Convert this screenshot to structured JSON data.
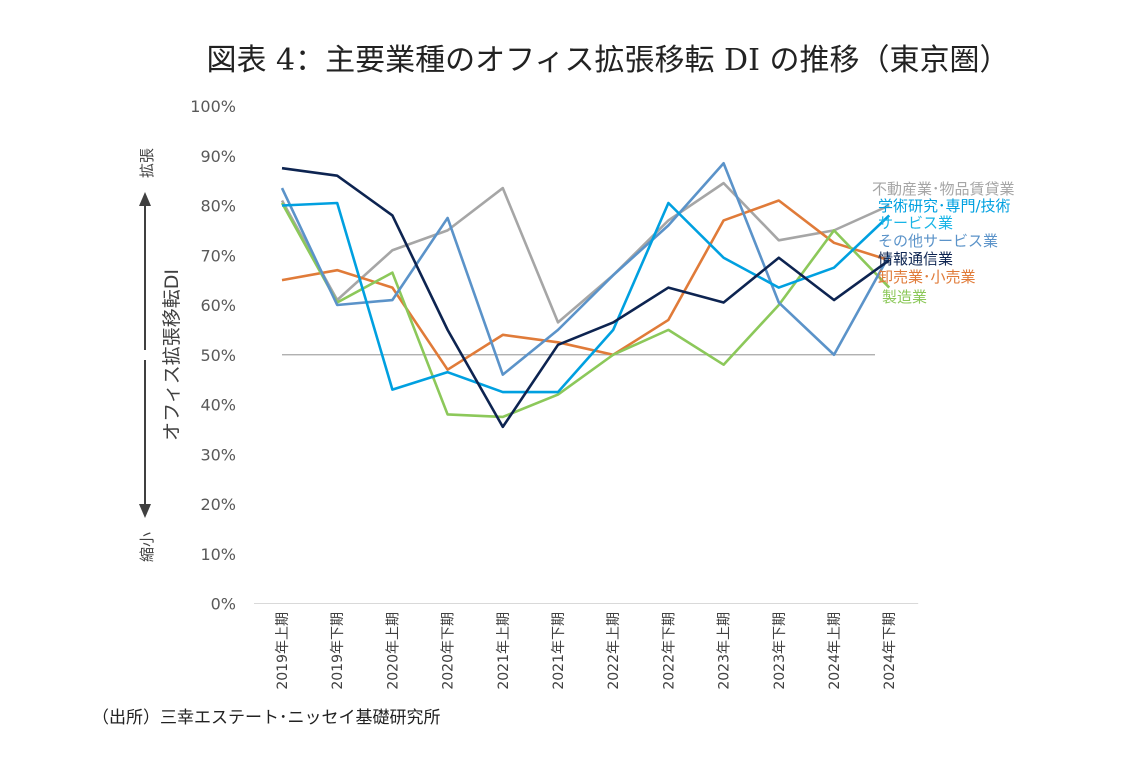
{
  "title": "図表 4：主要業種のオフィス拡張移転 DI の推移（東京圏）",
  "source": "（出所）三幸エステート･ニッセイ基礎研究所",
  "colors": {
    "real_estate": "#a6a6a6",
    "academic": "#00a0e0",
    "services": "#17b4e6",
    "other_services": "#5b93c9",
    "info_comm": "#0d2451",
    "wholesale_retail": "#e07b39",
    "manufacturing": "#8cc85a"
  },
  "chart_data": {
    "type": "line",
    "title": "図表 4：主要業種のオフィス拡張移転 DI の推移（東京圏）",
    "ylabel": "オフィス拡張移転DI",
    "ylabel_top": "拡張",
    "ylabel_bottom": "縮小",
    "ylim": [
      0,
      100
    ],
    "yticks": [
      "0%",
      "10%",
      "20%",
      "30%",
      "40%",
      "50%",
      "60%",
      "70%",
      "80%",
      "90%",
      "100%"
    ],
    "reference_line": 50,
    "categories": [
      "2019年上期",
      "2019年下期",
      "2020年上期",
      "2020年下期",
      "2021年上期",
      "2021年下期",
      "2022年上期",
      "2022年下期",
      "2023年上期",
      "2023年下期",
      "2024年上期",
      "2024年下期"
    ],
    "series": [
      {
        "key": "real_estate",
        "name": "不動産業･物品賃貸業",
        "values": [
          81,
          61,
          71,
          75,
          83.5,
          56.5,
          66,
          77,
          84.5,
          73,
          75,
          80
        ]
      },
      {
        "key": "academic",
        "name": "学術研究･専門/技術",
        "values": [
          80,
          80.5,
          43,
          46.5,
          42.5,
          42.5,
          55,
          80.5,
          69.5,
          63.5,
          67.5,
          78
        ]
      },
      {
        "key": "services",
        "name": "サービス業",
        "values": null
      },
      {
        "key": "other_services",
        "name": "その他サービス業",
        "values": [
          83.5,
          60,
          61,
          77.5,
          46,
          55,
          66,
          76,
          88.5,
          60.5,
          50,
          70
        ]
      },
      {
        "key": "info_comm",
        "name": "情報通信業",
        "values": [
          87.5,
          86,
          78,
          55,
          35.5,
          52,
          56.5,
          63.5,
          60.5,
          69.5,
          61,
          69
        ]
      },
      {
        "key": "wholesale_retail",
        "name": "卸売業･小売業",
        "values": [
          65,
          67,
          63.5,
          47,
          54,
          52.5,
          50,
          57,
          77,
          81,
          72.5,
          69
        ]
      },
      {
        "key": "manufacturing",
        "name": "製造業",
        "values": [
          80.5,
          60.5,
          66.5,
          38,
          37.5,
          42,
          50,
          55,
          48,
          60,
          75,
          63.5
        ]
      }
    ]
  }
}
